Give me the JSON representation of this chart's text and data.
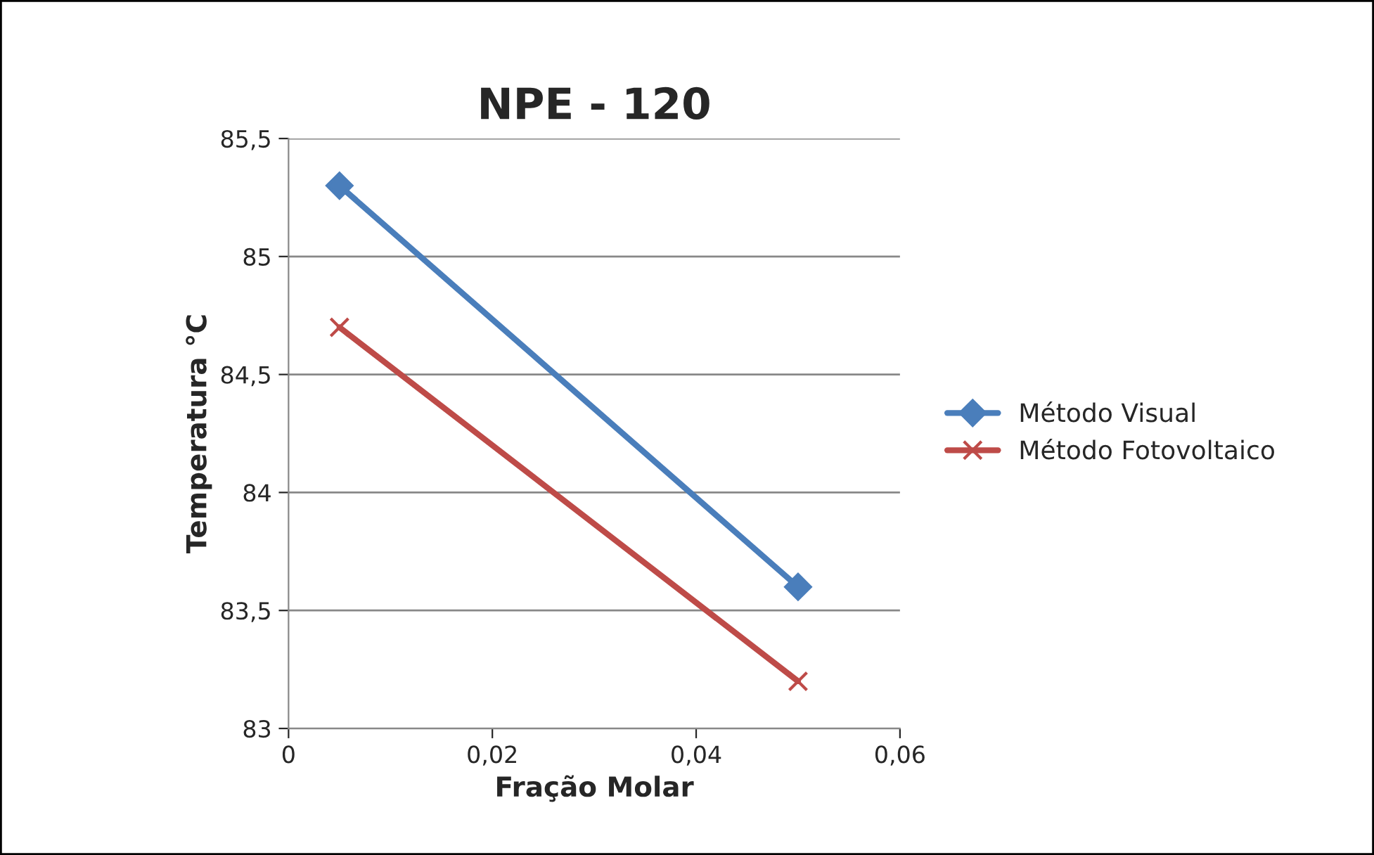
{
  "chart_data": {
    "type": "line",
    "title": "NPE - 120",
    "xlabel": "Fração Molar",
    "ylabel": "Temperatura °C",
    "x": [
      0.005,
      0.05
    ],
    "series": [
      {
        "name": "Método Visual",
        "color": "#4a7ebb",
        "values": [
          85.3,
          83.6
        ],
        "marker": "diamond"
      },
      {
        "name": "Método Fotovoltaico",
        "color": "#be4b48",
        "values": [
          84.7,
          83.2
        ],
        "marker": "cross"
      }
    ],
    "xlim": [
      0,
      0.06
    ],
    "xticks": [
      0,
      {
        "value": 0.02,
        "label": "0,02"
      },
      {
        "value": 0.04,
        "label": "0,04"
      },
      {
        "value": 0.06,
        "label": "0,06"
      }
    ],
    "ylim": [
      83,
      85.5
    ],
    "yticks": [
      83,
      {
        "value": 83.5,
        "label": "83,5"
      },
      84,
      {
        "value": 84.5,
        "label": "84,5"
      },
      85,
      {
        "value": 85.5,
        "label": "85,5"
      }
    ],
    "grid": "y",
    "legend": "right",
    "line_style": "solid"
  }
}
